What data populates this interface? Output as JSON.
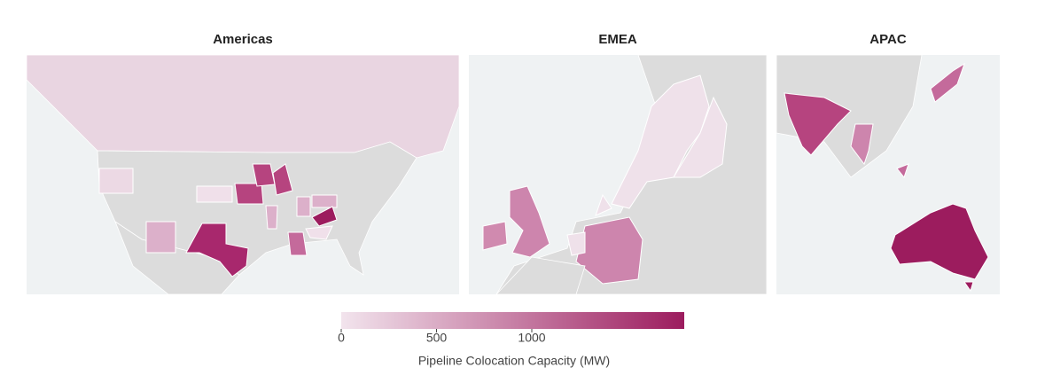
{
  "panels": [
    {
      "title": "Americas"
    },
    {
      "title": "EMEA"
    },
    {
      "title": "APAC"
    }
  ],
  "colorbar": {
    "title": "Pipeline Colocation Capacity (MW)",
    "range": [
      0,
      1800
    ],
    "ticks": [
      0,
      500,
      1000
    ],
    "colors": [
      "#f2e4ed",
      "#9c1c5e"
    ]
  }
}
